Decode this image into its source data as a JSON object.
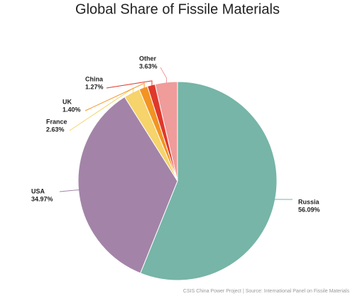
{
  "chart_data": {
    "type": "pie",
    "title": "Global Share of Fissile Materials",
    "categories": [
      "Russia",
      "USA",
      "France",
      "UK",
      "China",
      "Other"
    ],
    "values": [
      56.09,
      34.97,
      2.63,
      1.4,
      1.27,
      3.63
    ],
    "value_labels": [
      "56.09%",
      "34.97%",
      "2.63%",
      "1.40%",
      "1.27%",
      "3.63%"
    ],
    "colors": [
      "#76b5a7",
      "#a384a8",
      "#f6d36b",
      "#f39322",
      "#e0382b",
      "#ef9c9b"
    ],
    "source": "CSIS China Power Project | Source: International Panel on Fissile Materials"
  }
}
